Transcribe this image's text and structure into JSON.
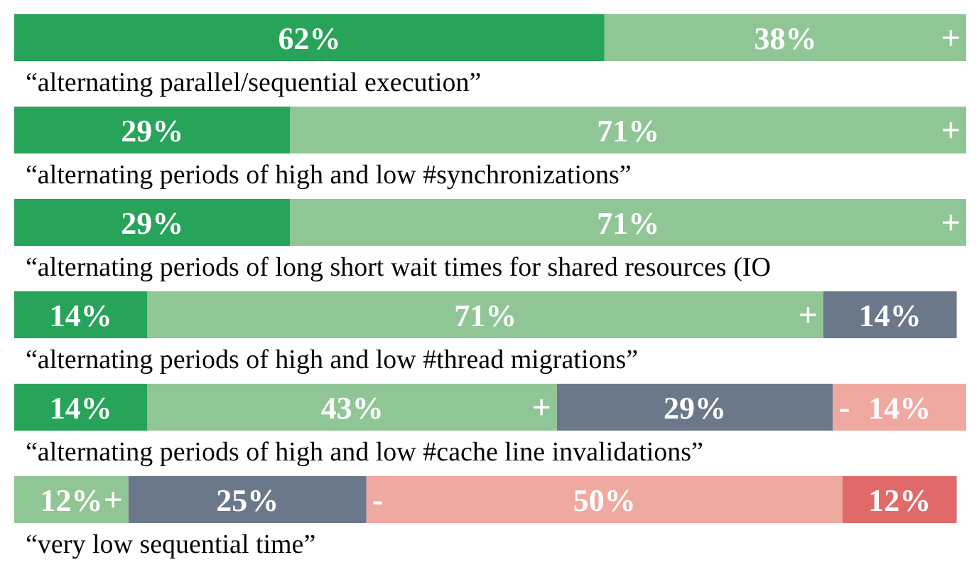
{
  "chart_data": {
    "type": "bar",
    "orientation": "horizontal",
    "stacked": true,
    "categories": [
      "“alternating parallel/sequential execution”",
      "“alternating periods of high and low #synchronizations”",
      "“alternating periods of long short wait times for shared resources (IO",
      "“alternating periods of high and low #thread migrations”",
      "“alternating periods of high and low #cache line invalidations”",
      "“very low sequential time”"
    ],
    "series": [
      {
        "color": "#27a35a",
        "values": [
          62,
          29,
          29,
          14,
          14,
          null
        ],
        "value_labels": [
          "62%",
          "29%",
          "29%",
          "14%",
          "14%",
          null
        ]
      },
      {
        "name": "+",
        "color": "#90c695",
        "values": [
          38,
          71,
          71,
          71,
          43,
          12
        ],
        "value_labels": [
          "38%",
          "71%",
          "71%",
          "71%",
          "43%",
          "12%"
        ]
      },
      {
        "color": "#6b7889",
        "values": [
          null,
          null,
          null,
          14,
          29,
          25
        ],
        "value_labels": [
          null,
          null,
          null,
          "14%",
          "29%",
          "25%"
        ]
      },
      {
        "name": "-",
        "color": "#f0a9a0",
        "values": [
          null,
          null,
          null,
          null,
          14,
          50
        ],
        "value_labels": [
          null,
          null,
          null,
          null,
          "14%",
          "50%"
        ]
      },
      {
        "color": "#e06a6a",
        "values": [
          null,
          null,
          null,
          null,
          null,
          12
        ],
        "value_labels": [
          null,
          null,
          null,
          null,
          null,
          "12%"
        ]
      }
    ]
  }
}
